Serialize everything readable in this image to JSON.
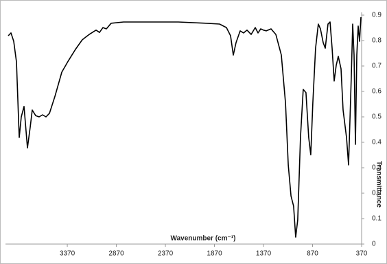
{
  "chart_data": {
    "type": "line",
    "x_label": "Wavenumber (cm⁻¹)",
    "y_label": "Transmittance",
    "y_axis_side": "right",
    "xlim": [
      4000,
      370
    ],
    "xticks": [
      3370,
      2870,
      2370,
      1870,
      1370,
      870,
      370
    ],
    "ylim": [
      0,
      0.9
    ],
    "yticks": [
      0,
      0.1,
      0.2,
      0.3,
      0.4,
      0.5,
      0.6,
      0.7,
      0.8,
      0.9
    ],
    "grid": false,
    "x": [
      3972,
      3944,
      3916,
      3888,
      3860,
      3839,
      3811,
      3776,
      3748,
      3727,
      3692,
      3657,
      3622,
      3587,
      3552,
      3496,
      3426,
      3357,
      3287,
      3217,
      3147,
      3077,
      3042,
      3007,
      2972,
      2923,
      2797,
      2517,
      2238,
      1958,
      1818,
      1748,
      1706,
      1678,
      1650,
      1608,
      1573,
      1538,
      1496,
      1454,
      1426,
      1398,
      1370,
      1342,
      1293,
      1244,
      1188,
      1146,
      1118,
      1090,
      1063,
      1042,
      1021,
      993,
      965,
      937,
      909,
      888,
      867,
      839,
      811,
      790,
      762,
      741,
      713,
      692,
      671,
      650,
      629,
      608,
      580,
      559,
      524,
      503,
      475,
      461,
      447,
      433,
      419,
      405,
      391,
      377
    ],
    "series": [
      {
        "color": "#000000",
        "values": [
          0.819,
          0.83,
          0.797,
          0.716,
          0.419,
          0.5,
          0.541,
          0.378,
          0.459,
          0.527,
          0.505,
          0.5,
          0.508,
          0.5,
          0.514,
          0.581,
          0.676,
          0.722,
          0.765,
          0.803,
          0.824,
          0.841,
          0.832,
          0.851,
          0.846,
          0.868,
          0.873,
          0.873,
          0.873,
          0.868,
          0.865,
          0.851,
          0.819,
          0.743,
          0.792,
          0.838,
          0.83,
          0.841,
          0.824,
          0.851,
          0.83,
          0.846,
          0.841,
          0.838,
          0.846,
          0.824,
          0.743,
          0.554,
          0.311,
          0.189,
          0.149,
          0.027,
          0.095,
          0.419,
          0.608,
          0.595,
          0.419,
          0.351,
          0.554,
          0.77,
          0.865,
          0.846,
          0.792,
          0.77,
          0.865,
          0.873,
          0.77,
          0.641,
          0.703,
          0.738,
          0.689,
          0.527,
          0.419,
          0.311,
          0.662,
          0.865,
          0.743,
          0.392,
          0.743,
          0.857,
          0.797,
          0.892
        ]
      }
    ]
  }
}
